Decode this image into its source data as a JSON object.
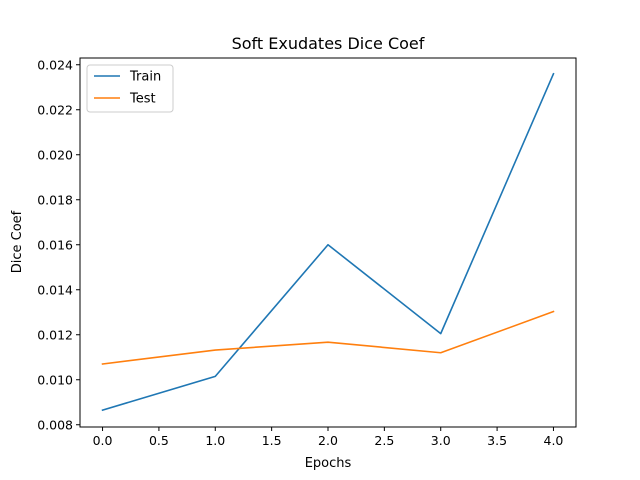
{
  "chart_data": {
    "type": "line",
    "title": "Soft Exudates Dice Coef",
    "xlabel": "Epochs",
    "ylabel": "Dice Coef",
    "x": [
      0,
      1,
      2,
      3,
      4
    ],
    "xlim": [
      -0.2,
      4.2
    ],
    "ylim": [
      0.0079,
      0.0243
    ],
    "xticks": [
      0.0,
      0.5,
      1.0,
      1.5,
      2.0,
      2.5,
      3.0,
      3.5,
      4.0
    ],
    "xtick_labels": [
      "0.0",
      "0.5",
      "1.0",
      "1.5",
      "2.0",
      "2.5",
      "3.0",
      "3.5",
      "4.0"
    ],
    "yticks": [
      0.008,
      0.01,
      0.012,
      0.014,
      0.016,
      0.018,
      0.02,
      0.022,
      0.024
    ],
    "ytick_labels": [
      "0.008",
      "0.010",
      "0.012",
      "0.014",
      "0.016",
      "0.018",
      "0.020",
      "0.022",
      "0.024"
    ],
    "grid": false,
    "legend_position": "top-left",
    "series": [
      {
        "name": "Train",
        "color": "#1f77b4",
        "values": [
          0.00865,
          0.01015,
          0.016,
          0.01205,
          0.0236
        ]
      },
      {
        "name": "Test",
        "color": "#ff7f0e",
        "values": [
          0.0107,
          0.01132,
          0.01167,
          0.0112,
          0.01303
        ]
      }
    ]
  }
}
